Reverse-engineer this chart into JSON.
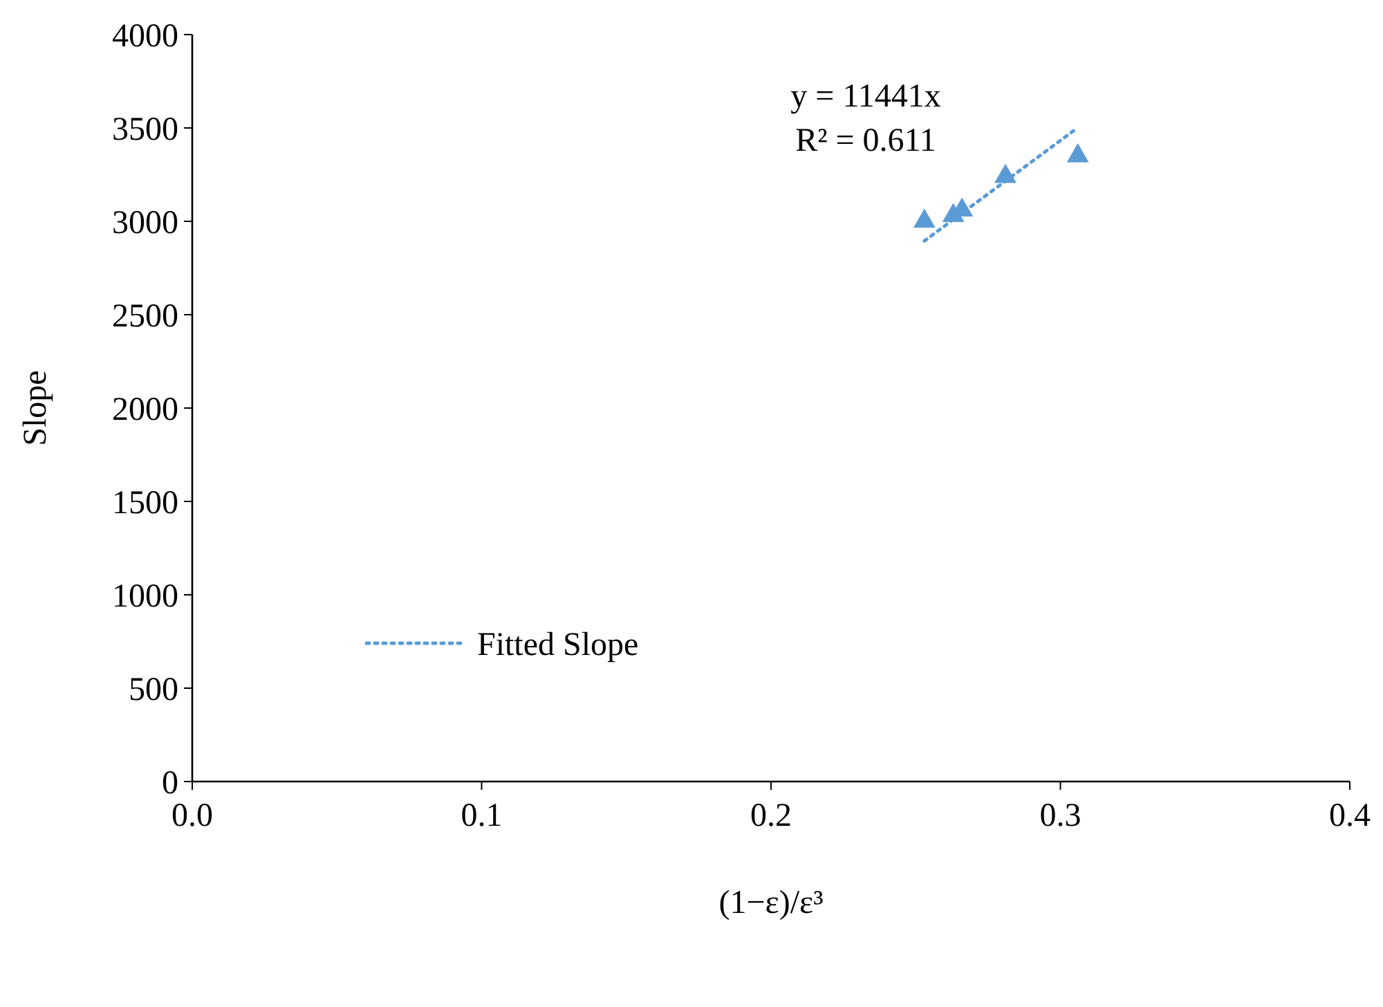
{
  "chart_data": {
    "type": "scatter",
    "xlabel": "(1−ε)/ε³",
    "ylabel": "Slope",
    "xlim": [
      0,
      0.4
    ],
    "xticks": [
      {
        "value": 0,
        "label": "0.0"
      },
      0.1,
      0.2,
      0.3,
      0.4
    ],
    "ylim": [
      0,
      4000
    ],
    "yticks": [
      0,
      500,
      1000,
      1500,
      2000,
      2500,
      3000,
      3500,
      4000
    ],
    "grid": false,
    "legend": "bottom left",
    "annotations": [
      "y = 11441x",
      "R² = 0.611"
    ],
    "series": [
      {
        "color": "#5b9bd5",
        "marker": "triangle",
        "x": [
          0.253,
          0.263,
          0.266,
          0.281,
          0.306
        ],
        "values": [
          3000,
          3030,
          3060,
          3240,
          3350
        ]
      },
      {
        "type": "line",
        "name": "Fitted Slope",
        "color": "#5b9bd5",
        "line_style": "dotted",
        "x": [
          0.253,
          0.305
        ],
        "values": [
          2895,
          3490
        ]
      }
    ]
  }
}
